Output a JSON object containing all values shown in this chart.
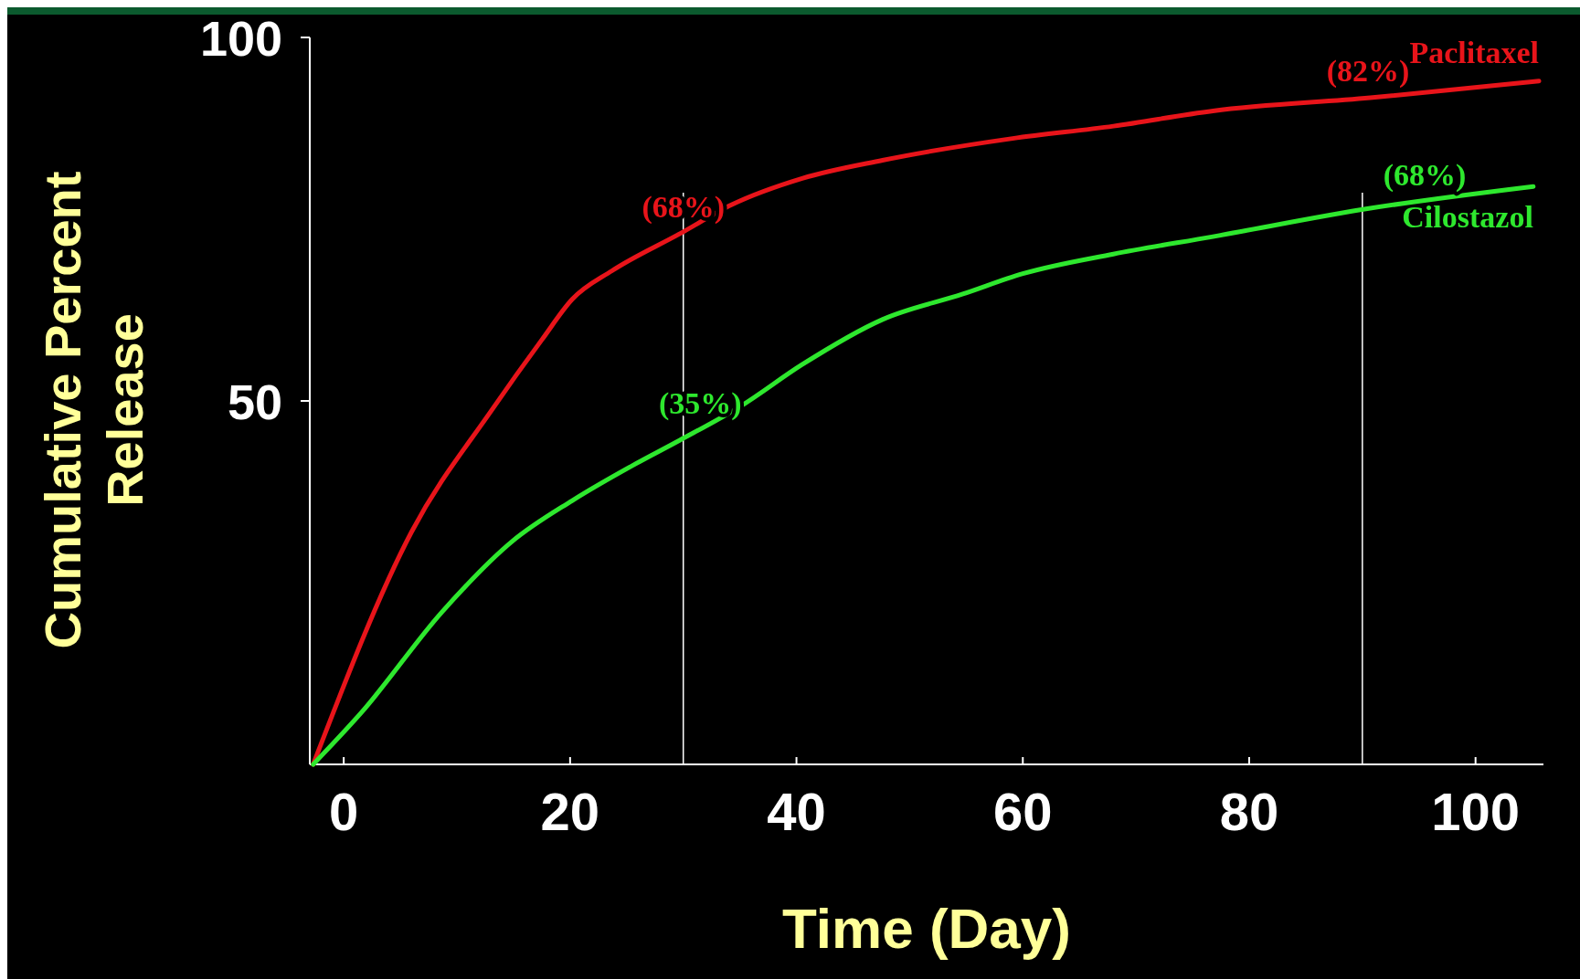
{
  "chart_data": {
    "type": "line",
    "xlabel": "Time (Day)",
    "ylabel": "Cumulative Percent Release",
    "xlim": [
      -3,
      106
    ],
    "ylim": [
      0,
      100
    ],
    "xticks": [
      0,
      20,
      40,
      60,
      80,
      100
    ],
    "yticks": [
      50,
      100
    ],
    "grid": false,
    "marker": "none",
    "line_style": "solid",
    "series": [
      {
        "name": "Paclitaxel",
        "color": "#e8141a",
        "x": [
          -2.7,
          6,
          13.1,
          17.5,
          20.2,
          23.7,
          29.7,
          34.3,
          40.5,
          47.6,
          59.1,
          68,
          76.8,
          90.7,
          105.6
        ],
        "values": [
          0,
          32,
          48.8,
          58.4,
          64,
          67.9,
          73,
          77,
          80.6,
          83.1,
          86.1,
          87.8,
          89.9,
          91.7,
          94
        ]
      },
      {
        "name": "Cilostazol",
        "color": "#2ee82e",
        "x": [
          -2.7,
          1.6,
          8.7,
          14.9,
          20.2,
          25.5,
          29.7,
          35.2,
          40.5,
          47.6,
          54.7,
          60,
          68,
          76.8,
          90.7,
          105.1
        ],
        "values": [
          0,
          7.2,
          21,
          30.7,
          36.3,
          41.1,
          44.6,
          49.4,
          55,
          61.2,
          64.7,
          67.5,
          70.2,
          72.6,
          76.5,
          79.5
        ]
      }
    ],
    "ref_lines": [
      {
        "axis": "x",
        "value": 30,
        "color": "#ffffff"
      },
      {
        "axis": "x",
        "value": 90,
        "color": "#ffffff"
      }
    ],
    "annotations": [
      {
        "text": "(68%)",
        "x": 30,
        "y": 73
      },
      {
        "text": "(35%)",
        "x": 31.5,
        "y": 46
      },
      {
        "text": "(82%)",
        "x": 90.5,
        "y": 91.7
      },
      {
        "text": "(68%)",
        "x": 95.5,
        "y": 77.4
      }
    ]
  }
}
